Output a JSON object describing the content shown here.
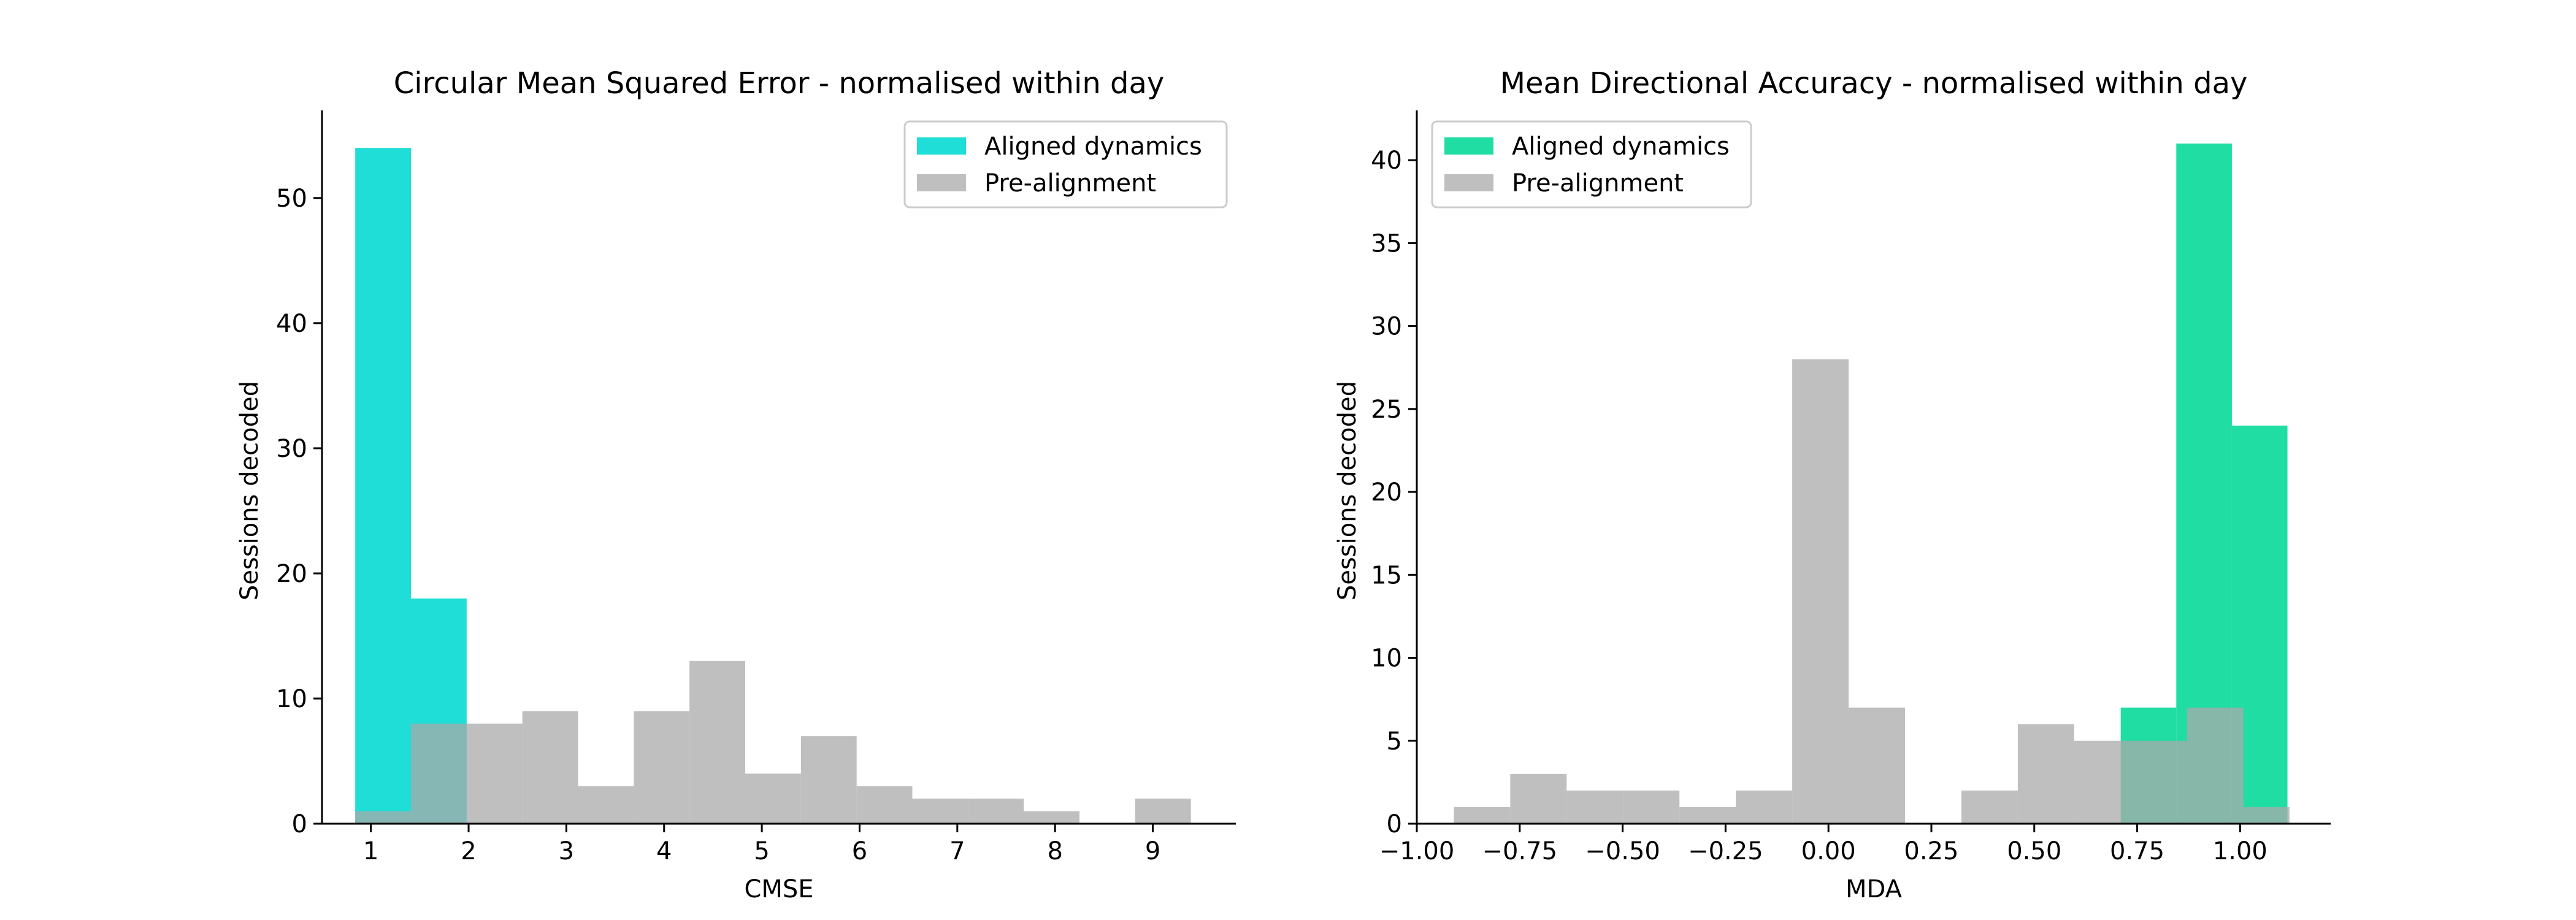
{
  "chart_data": [
    {
      "type": "bar",
      "title": "Circular Mean Squared Error - normalised within day",
      "xlabel": "CMSE",
      "ylabel": "Sessions decoded",
      "xlim": [
        0.5,
        9.85
      ],
      "ylim": [
        0,
        57
      ],
      "xticks": [
        1,
        2,
        3,
        4,
        5,
        6,
        7,
        8,
        9
      ],
      "xtick_labels": [
        "1",
        "2",
        "3",
        "4",
        "5",
        "6",
        "7",
        "8",
        "9"
      ],
      "yticks": [
        0,
        10,
        20,
        30,
        40,
        50
      ],
      "ytick_labels": [
        "0",
        "10",
        "20",
        "30",
        "40",
        "50"
      ],
      "legend": "top-right",
      "grid": false,
      "series": [
        {
          "name": "Aligned dynamics",
          "color": "#00d8d2",
          "bin_edges": [
            0.84,
            1.41,
            1.98
          ],
          "counts": [
            54,
            18
          ]
        },
        {
          "name": "Pre-alignment",
          "color": "#aaaaaa",
          "bin_edges": [
            0.84,
            1.41,
            1.98,
            2.55,
            3.12,
            3.69,
            4.26,
            4.83,
            5.4,
            5.97,
            6.54,
            7.11,
            7.68,
            8.25,
            8.82,
            9.39
          ],
          "counts": [
            1,
            8,
            8,
            9,
            3,
            9,
            13,
            4,
            7,
            3,
            2,
            2,
            1,
            0,
            2
          ]
        }
      ]
    },
    {
      "type": "bar",
      "title": "Mean Directional Accuracy - normalised within day",
      "xlabel": "MDA",
      "ylabel": "Sessions decoded",
      "xlim": [
        -1.0,
        1.22
      ],
      "ylim": [
        0,
        43
      ],
      "xticks": [
        -1.0,
        -0.75,
        -0.5,
        -0.25,
        0.0,
        0.25,
        0.5,
        0.75,
        1.0
      ],
      "xtick_labels": [
        "−1.00",
        "−0.75",
        "−0.50",
        "−0.25",
        "0.00",
        "0.25",
        "0.50",
        "0.75",
        "1.00"
      ],
      "yticks": [
        0,
        5,
        10,
        15,
        20,
        25,
        30,
        35,
        40
      ],
      "ytick_labels": [
        "0",
        "5",
        "10",
        "15",
        "20",
        "25",
        "30",
        "35",
        "40"
      ],
      "legend": "top-left",
      "grid": false,
      "series": [
        {
          "name": "Aligned dynamics",
          "color": "#00d896",
          "bin_edges": [
            0.71,
            0.845,
            0.98,
            1.115
          ],
          "counts": [
            7,
            41,
            24
          ]
        },
        {
          "name": "Pre-alignment",
          "color": "#aaaaaa",
          "bin_edges": [
            -0.91,
            -0.773,
            -0.636,
            -0.499,
            -0.362,
            -0.225,
            -0.088,
            0.049,
            0.186,
            0.323,
            0.46,
            0.597,
            0.734,
            0.871,
            1.008,
            1.12
          ],
          "counts": [
            1,
            3,
            2,
            2,
            1,
            2,
            28,
            7,
            0,
            2,
            6,
            5,
            5,
            7,
            1
          ]
        }
      ]
    }
  ]
}
